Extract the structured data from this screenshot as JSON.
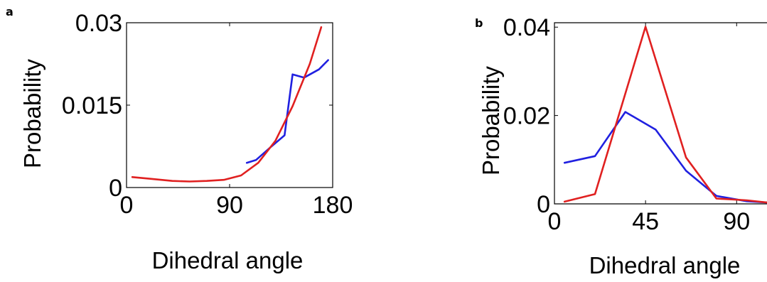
{
  "chart_data": [
    {
      "type": "line",
      "panel_label": "a",
      "xlabel": "Dihedral angle",
      "ylabel": "Probability",
      "xlim": [
        0,
        180
      ],
      "ylim": [
        0,
        0.03
      ],
      "xticks": [
        0,
        90,
        180
      ],
      "xtick_labels": [
        "0",
        "90",
        "180"
      ],
      "yticks": [
        0,
        0.015,
        0.03
      ],
      "ytick_labels": [
        "0",
        "0.015",
        "0.03"
      ],
      "series": [
        {
          "color": "#2020e0",
          "x": [
            105,
            113,
            125,
            138,
            145,
            155,
            168,
            176
          ],
          "y": [
            0.0045,
            0.005,
            0.0072,
            0.0095,
            0.0206,
            0.02,
            0.0215,
            0.0232
          ]
        },
        {
          "color": "#e02020",
          "x": [
            5,
            20,
            40,
            55,
            70,
            85,
            100,
            115,
            130,
            145,
            160,
            170
          ],
          "y": [
            0.0019,
            0.0016,
            0.0012,
            0.0011,
            0.0012,
            0.0014,
            0.0022,
            0.0045,
            0.0085,
            0.0148,
            0.0225,
            0.0292
          ]
        }
      ]
    },
    {
      "type": "line",
      "panel_label": "b",
      "xlabel": "Dihedral angle",
      "ylabel": "Probability",
      "xlim": [
        0,
        105
      ],
      "ylim": [
        0,
        0.041
      ],
      "xticks": [
        0,
        45,
        90
      ],
      "xtick_labels": [
        "0",
        "45",
        "90"
      ],
      "yticks": [
        0,
        0.02,
        0.04
      ],
      "ytick_labels": [
        "0",
        "0.02",
        "0.04"
      ],
      "series": [
        {
          "color": "#2020e0",
          "x": [
            5,
            20,
            35,
            50,
            65,
            80,
            95,
            105
          ],
          "y": [
            0.0093,
            0.0108,
            0.0208,
            0.0168,
            0.0075,
            0.0018,
            0.0006,
            0.0003
          ]
        },
        {
          "color": "#e02020",
          "x": [
            5,
            20,
            45,
            65,
            80,
            95,
            105
          ],
          "y": [
            0.0005,
            0.0022,
            0.0401,
            0.0105,
            0.0012,
            0.0008,
            0.0003
          ]
        }
      ]
    }
  ]
}
